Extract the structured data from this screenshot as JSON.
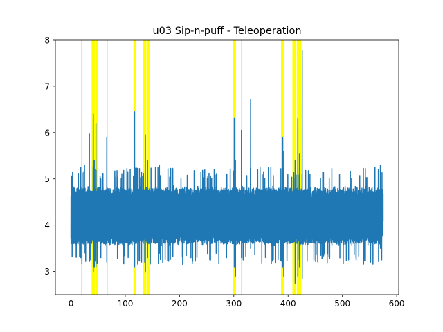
{
  "chart_data": {
    "type": "line",
    "title": "u03 Sip-n-puff - Teleoperation",
    "xlabel": "",
    "ylabel": "",
    "xlim": [
      -28.7,
      603.7
    ],
    "ylim": [
      2.5,
      8.0
    ],
    "xticks": [
      0,
      100,
      200,
      300,
      400,
      500,
      600
    ],
    "xtick_labels": [
      "0",
      "100",
      "200",
      "300",
      "400",
      "500",
      "600"
    ],
    "yticks": [
      3,
      4,
      5,
      6,
      7,
      8
    ],
    "ytick_labels": [
      "3",
      "4",
      "5",
      "6",
      "7",
      "8"
    ],
    "grid": false,
    "legend": "none",
    "series": [
      {
        "color": "#1f77b4",
        "x_range": [
          0,
          575
        ],
        "baseline": 4.2,
        "typical_band": [
          3.65,
          4.85
        ],
        "peaks": [
          {
            "x": 18,
            "high": 5.25,
            "low": 3.3
          },
          {
            "x": 25,
            "high": 5.3,
            "low": 3.4
          },
          {
            "x": 34,
            "high": 5.97,
            "low": 3.3
          },
          {
            "x": 41,
            "high": 6.4,
            "low": 3.0
          },
          {
            "x": 43,
            "high": 5.4,
            "low": 3.1
          },
          {
            "x": 46,
            "high": 6.2,
            "low": 3.1
          },
          {
            "x": 55,
            "high": 5.0,
            "low": 3.3
          },
          {
            "x": 66,
            "high": 5.9,
            "low": 3.2
          },
          {
            "x": 117,
            "high": 6.45,
            "low": 3.1
          },
          {
            "x": 130,
            "high": 5.15,
            "low": 3.2
          },
          {
            "x": 137,
            "high": 5.95,
            "low": 3.0
          },
          {
            "x": 141,
            "high": 5.4,
            "low": 3.3
          },
          {
            "x": 163,
            "high": 5.3,
            "low": 3.4
          },
          {
            "x": 301,
            "high": 6.32,
            "low": 3.1
          },
          {
            "x": 303,
            "high": 5.4,
            "low": 2.9
          },
          {
            "x": 314,
            "high": 6.05,
            "low": 3.3
          },
          {
            "x": 331,
            "high": 6.72,
            "low": 3.5
          },
          {
            "x": 390,
            "high": 5.9,
            "low": 3.1
          },
          {
            "x": 392,
            "high": 5.6,
            "low": 2.9
          },
          {
            "x": 413,
            "high": 5.4,
            "low": 2.75
          },
          {
            "x": 418,
            "high": 6.3,
            "low": 2.9
          },
          {
            "x": 421,
            "high": 5.55,
            "low": 3.1
          },
          {
            "x": 426,
            "high": 7.77,
            "low": 2.85
          },
          {
            "x": 560,
            "high": 5.25,
            "low": 3.6
          },
          {
            "x": 570,
            "high": 5.3,
            "low": 3.5
          }
        ]
      }
    ],
    "highlight_color": "#ffff00",
    "highlight_regions": [
      [
        18.5,
        19.5
      ],
      [
        38,
        44
      ],
      [
        45,
        50
      ],
      [
        66,
        68
      ],
      [
        115,
        120
      ],
      [
        132,
        139
      ],
      [
        140,
        145
      ],
      [
        299,
        304
      ],
      [
        313,
        314
      ],
      [
        387,
        393
      ],
      [
        408,
        415
      ],
      [
        416,
        424
      ]
    ]
  }
}
